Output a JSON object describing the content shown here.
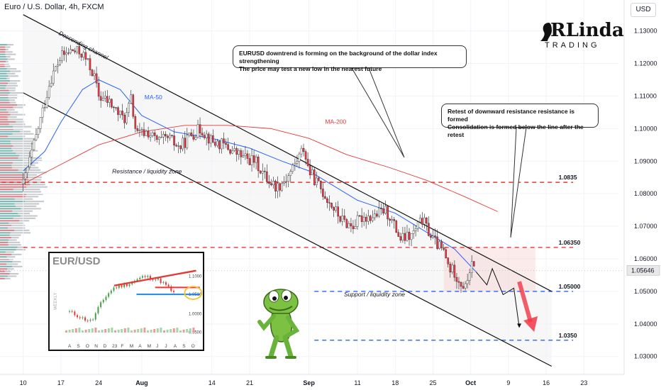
{
  "header": {
    "title": "Euro / U.S. Dollar, 4h, FXCM",
    "currency": "USD"
  },
  "logo": {
    "line1": "RLinda",
    "line2": "TRADING"
  },
  "notes": [
    {
      "line1": "EURUSD downtrend is forming on the background of the dollar index strengthening",
      "line2": "The price may test a new low in the nearest future"
    },
    {
      "line1": "Retest of downward resistance resistance is formed",
      "line2": "Consolidation is formed below the line after the retest"
    }
  ],
  "colors": {
    "up": "#089981",
    "down": "#f23645",
    "ma50": "#2962ff",
    "ma200": "#e53935",
    "resistance": "#e53935",
    "support": "#2962ff",
    "channel": "#111111",
    "arrow": "#f23645"
  },
  "chart_data": {
    "type": "candlestick",
    "title": "Euro / U.S. Dollar, 4h, FXCM",
    "ylabel": "USD",
    "ylim": [
      1.0245,
      1.1395
    ],
    "y_ticks": [
      1.13,
      1.12,
      1.11,
      1.1,
      1.09,
      1.08,
      1.07,
      1.06,
      1.05,
      1.04,
      1.03
    ],
    "x_ticks": [
      "10",
      "17",
      "24",
      "Aug",
      "14",
      "21",
      "Sep",
      "11",
      "18",
      "25",
      "Oct",
      "9",
      "16",
      "23"
    ],
    "x_tick_days": [
      10,
      17,
      24,
      32,
      45,
      52,
      63,
      72,
      79,
      86,
      93,
      100,
      107,
      114
    ],
    "last_price": 1.05646,
    "series": [
      {
        "name": "MA-50",
        "points": [
          [
            10,
            1.087
          ],
          [
            14,
            1.093
          ],
          [
            17,
            1.102
          ],
          [
            21,
            1.112
          ],
          [
            24,
            1.115
          ],
          [
            28,
            1.112
          ],
          [
            32,
            1.104
          ],
          [
            38,
            1.099
          ],
          [
            45,
            1.097
          ],
          [
            52,
            1.094
          ],
          [
            58,
            1.09
          ],
          [
            63,
            1.087
          ],
          [
            67,
            1.083
          ],
          [
            72,
            1.078
          ],
          [
            79,
            1.074
          ],
          [
            86,
            1.067
          ],
          [
            90,
            1.063
          ],
          [
            94,
            1.056
          ]
        ]
      },
      {
        "name": "MA-200",
        "points": [
          [
            10,
            1.083
          ],
          [
            17,
            1.089
          ],
          [
            24,
            1.095
          ],
          [
            32,
            1.099
          ],
          [
            40,
            1.101
          ],
          [
            48,
            1.101
          ],
          [
            56,
            1.1
          ],
          [
            63,
            1.097
          ],
          [
            70,
            1.092
          ],
          [
            78,
            1.088
          ],
          [
            85,
            1.084
          ],
          [
            92,
            1.079
          ],
          [
            98,
            1.0745
          ]
        ]
      }
    ],
    "price_path": [
      [
        10,
        1.083
      ],
      [
        12,
        1.095
      ],
      [
        14,
        1.108
      ],
      [
        15,
        1.115
      ],
      [
        17,
        1.122
      ],
      [
        19,
        1.124
      ],
      [
        21,
        1.123
      ],
      [
        23,
        1.117
      ],
      [
        24,
        1.11
      ],
      [
        26,
        1.108
      ],
      [
        28,
        1.104
      ],
      [
        29,
        1.103
      ],
      [
        30,
        1.109
      ],
      [
        31,
        1.098
      ],
      [
        33,
        1.099
      ],
      [
        35,
        1.096
      ],
      [
        37,
        1.097
      ],
      [
        39,
        1.094
      ],
      [
        41,
        1.098
      ],
      [
        43,
        1.1
      ],
      [
        45,
        1.096
      ],
      [
        47,
        1.095
      ],
      [
        49,
        1.093
      ],
      [
        51,
        1.091
      ],
      [
        53,
        1.09
      ],
      [
        55,
        1.085
      ],
      [
        57,
        1.082
      ],
      [
        59,
        1.085
      ],
      [
        61,
        1.091
      ],
      [
        62,
        1.094
      ],
      [
        63,
        1.087
      ],
      [
        65,
        1.082
      ],
      [
        67,
        1.077
      ],
      [
        69,
        1.072
      ],
      [
        71,
        1.07
      ],
      [
        73,
        1.073
      ],
      [
        75,
        1.073
      ],
      [
        77,
        1.075
      ],
      [
        78,
        1.073
      ],
      [
        80,
        1.066
      ],
      [
        82,
        1.067
      ],
      [
        84,
        1.072
      ],
      [
        85,
        1.069
      ],
      [
        86,
        1.066
      ],
      [
        88,
        1.062
      ],
      [
        89,
        1.057
      ],
      [
        90,
        1.056
      ],
      [
        91,
        1.053
      ],
      [
        92,
        1.051
      ],
      [
        93,
        1.058
      ],
      [
        94,
        1.056
      ]
    ],
    "projection": [
      [
        94,
        1.056
      ],
      [
        96,
        1.052
      ],
      [
        97,
        1.057
      ],
      [
        99,
        1.049
      ],
      [
        101,
        1.051
      ],
      [
        102,
        1.039
      ]
    ],
    "projection_arrow": [
      [
        102,
        1.053
      ],
      [
        104.5,
        1.038
      ]
    ],
    "channel_lines": [
      {
        "name": "Descending channel",
        "points": [
          [
            10,
            1.135
          ],
          [
            108,
            1.05
          ]
        ]
      },
      {
        "points": [
          [
            10,
            1.111
          ],
          [
            108,
            1.027
          ]
        ]
      }
    ],
    "levels": [
      {
        "name": "Resistance / liquidity zone",
        "value": 1.0835,
        "label": "1.0835",
        "color": "#e53935"
      },
      {
        "name": "",
        "value": 1.0635,
        "label": "1.06350",
        "color": "#e53935"
      },
      {
        "name": "Support / liquidity zone",
        "value": 1.05,
        "label": "1.05000",
        "color": "#2962ff"
      },
      {
        "name": "",
        "value": 1.035,
        "label": "1.0350",
        "color": "#2962ff"
      }
    ],
    "annotations": [
      "Descending channel",
      "MA-50",
      "MA-200",
      "Resistance / liquidity zone",
      "Support / liquidity zone"
    ]
  },
  "inset": {
    "title": "EUR/USD",
    "side_label": "WEEKLY",
    "y_labels": [
      "1.1000",
      "1.0516",
      "1.0000",
      "0.9500"
    ],
    "x_labels": [
      "A",
      "S",
      "O",
      "N",
      "D",
      "23",
      "F",
      "M",
      "A",
      "M",
      "J",
      "J",
      "A",
      "S",
      "O"
    ],
    "path": [
      [
        0,
        1.005
      ],
      [
        1,
        0.995
      ],
      [
        2,
        0.985
      ],
      [
        3,
        0.98
      ],
      [
        4,
        1.02
      ],
      [
        5,
        1.05
      ],
      [
        6,
        1.07
      ],
      [
        7,
        1.075
      ],
      [
        8,
        1.08
      ],
      [
        9,
        1.09
      ],
      [
        10,
        1.1
      ],
      [
        11,
        1.095
      ],
      [
        12,
        1.09
      ],
      [
        13,
        1.075
      ],
      [
        14,
        1.055
      ]
    ],
    "resistance_value": 1.07,
    "support_value": 1.0516
  }
}
